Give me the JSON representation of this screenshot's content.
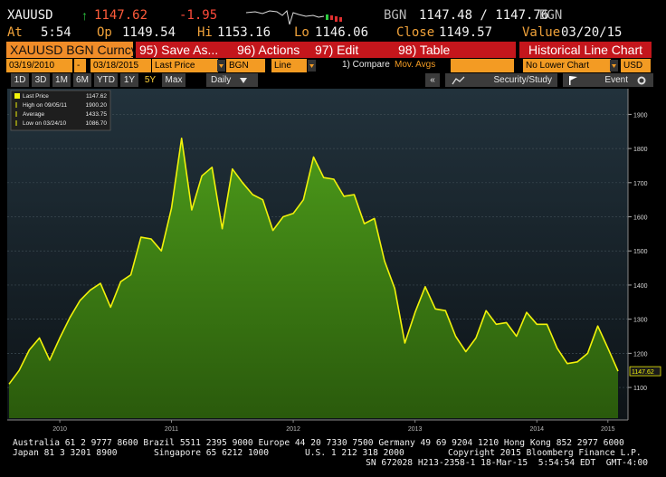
{
  "header": {
    "ticker": "XAUUSD",
    "arrow": "↑",
    "last": "1147.62",
    "change": "-1.95",
    "source": "BGN",
    "bid_ask": "1147.48 / 1147.76",
    "source2": "BGN",
    "stats": [
      {
        "label": "At",
        "value": "5:54"
      },
      {
        "label": "Op",
        "value": "1149.54"
      },
      {
        "label": "Hi",
        "value": "1153.16"
      },
      {
        "label": "Lo",
        "value": "1146.06"
      },
      {
        "label": "Close",
        "value": "1149.57"
      },
      {
        "label": "Value",
        "value": "03/20/15"
      }
    ]
  },
  "toolbar": {
    "security": "XAUUSD BGN Curncy",
    "buttons": [
      "95) Save As...",
      "96) Actions",
      "97) Edit",
      "98) Table"
    ],
    "view": "Historical Line Chart"
  },
  "settings": {
    "start": "03/19/2010",
    "dash": "-",
    "end": "03/18/2015",
    "field": "Last Price",
    "source": "BGN",
    "style": "Line",
    "compare": "1) Compare",
    "compare_value": "Mov. Avgs",
    "lower": "No Lower Chart",
    "currency": "USD"
  },
  "periods": {
    "items": [
      "1D",
      "3D",
      "1M",
      "6M",
      "YTD",
      "1Y",
      "5Y",
      "Max"
    ],
    "selected": "5Y",
    "frequency": "Daily",
    "collapse": "«",
    "study": "Security/Study",
    "event": "Event"
  },
  "chart_data": {
    "type": "area",
    "categories": [
      null,
      null,
      null,
      null,
      null,
      "2010",
      null,
      null,
      null,
      null,
      null,
      null,
      null,
      null,
      null,
      null,
      "2011",
      null,
      null,
      null,
      null,
      null,
      null,
      null,
      null,
      null,
      null,
      null,
      "2012",
      null,
      null,
      null,
      null,
      null,
      null,
      null,
      null,
      null,
      null,
      null,
      "2013",
      null,
      null,
      null,
      null,
      null,
      null,
      null,
      null,
      null,
      null,
      null,
      "2014",
      null,
      null,
      null,
      null,
      null,
      null,
      "2015",
      null
    ],
    "series": [
      {
        "name": "Last Price",
        "color": "#f2f20a",
        "fill": "#3c7f16",
        "values": [
          1110,
          1150,
          1210,
          1245,
          1180,
          1245,
          1305,
          1355,
          1385,
          1405,
          1335,
          1410,
          1430,
          1540,
          1535,
          1500,
          1625,
          1830,
          1620,
          1720,
          1745,
          1565,
          1740,
          1700,
          1665,
          1650,
          1560,
          1600,
          1610,
          1650,
          1775,
          1715,
          1710,
          1660,
          1665,
          1580,
          1595,
          1470,
          1390,
          1230,
          1320,
          1395,
          1330,
          1325,
          1250,
          1205,
          1245,
          1325,
          1285,
          1290,
          1250,
          1320,
          1285,
          1285,
          1215,
          1170,
          1175,
          1200,
          1280,
          1215,
          1147.62
        ]
      }
    ],
    "legend": [
      {
        "label": "Last Price",
        "value": "1147.62"
      },
      {
        "label": "High on 09/05/11",
        "value": "1900.20"
      },
      {
        "label": "Average",
        "value": "1433.75"
      },
      {
        "label": "Low on 03/24/10",
        "value": "1086.70"
      }
    ],
    "legend_position": "upper left",
    "ylim": [
      1010,
      1970
    ],
    "yticks": [
      1100,
      1200,
      1300,
      1400,
      1500,
      1600,
      1700,
      1800,
      1900
    ],
    "grid": true,
    "y_axis_side": "right"
  },
  "footer": {
    "line1": "Australia 61 2 9777 8600 Brazil 5511 2395 9000 Europe 44 20 7330 7500 Germany 49 69 9204 1210 Hong Kong 852 2977 6000",
    "line2": [
      "Japan 81 3 3201 8900",
      "Singapore 65 6212 1000",
      "U.S. 1 212 318 2000",
      "Copyright 2015 Bloomberg Finance L.P."
    ],
    "line3": "SN 672028 H213-2358-1 18-Mar-15  5:54:54 EDT  GMT-4:00"
  }
}
